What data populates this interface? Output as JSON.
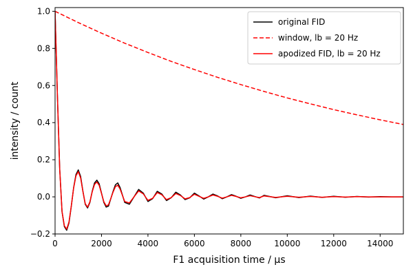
{
  "chart_data": {
    "type": "line",
    "xlabel": "F1 acquisition time / µs",
    "ylabel": "intensity / count",
    "xlim": [
      0,
      15000
    ],
    "ylim": [
      -0.2,
      1.02
    ],
    "xticks": [
      0,
      2000,
      4000,
      6000,
      8000,
      10000,
      12000,
      14000
    ],
    "xtick_labels": [
      "0",
      "2000",
      "4000",
      "6000",
      "8000",
      "10000",
      "12000",
      "14000"
    ],
    "yticks": [
      -0.2,
      0.0,
      0.2,
      0.4,
      0.6,
      0.8,
      1.0
    ],
    "ytick_labels": [
      "−0.2",
      "0.0",
      "0.2",
      "0.4",
      "0.6",
      "0.8",
      "1.0"
    ],
    "grid": false,
    "legend_position": "top-right",
    "series": [
      {
        "name": "original FID",
        "color": "#000000",
        "style": "solid",
        "x": [
          0,
          100,
          200,
          300,
          400,
          500,
          600,
          700,
          800,
          900,
          1000,
          1100,
          1200,
          1300,
          1400,
          1500,
          1600,
          1700,
          1800,
          1900,
          2000,
          2100,
          2200,
          2300,
          2400,
          2500,
          2600,
          2700,
          2800,
          2900,
          3000,
          3200,
          3400,
          3600,
          3800,
          4000,
          4200,
          4400,
          4600,
          4800,
          5000,
          5200,
          5400,
          5600,
          5800,
          6000,
          6200,
          6400,
          6600,
          6800,
          7000,
          7200,
          7400,
          7600,
          7800,
          8000,
          8200,
          8400,
          8600,
          8800,
          9000,
          9500,
          10000,
          10500,
          11000,
          11500,
          12000,
          12500,
          13000,
          13500,
          14000,
          14500,
          15000
        ],
        "y": [
          1.0,
          0.55,
          0.15,
          -0.08,
          -0.16,
          -0.18,
          -0.14,
          -0.05,
          0.05,
          0.12,
          0.145,
          0.11,
          0.03,
          -0.04,
          -0.06,
          -0.03,
          0.03,
          0.075,
          0.09,
          0.07,
          0.02,
          -0.03,
          -0.055,
          -0.05,
          -0.01,
          0.03,
          0.065,
          0.075,
          0.05,
          0.01,
          -0.03,
          -0.04,
          0.0,
          0.04,
          0.02,
          -0.025,
          -0.01,
          0.03,
          0.015,
          -0.02,
          -0.005,
          0.025,
          0.01,
          -0.015,
          -0.005,
          0.02,
          0.005,
          -0.012,
          0.0,
          0.015,
          0.005,
          -0.01,
          0.0,
          0.012,
          0.003,
          -0.008,
          0.0,
          0.01,
          0.002,
          -0.006,
          0.008,
          -0.005,
          0.006,
          -0.004,
          0.004,
          -0.003,
          0.003,
          -0.002,
          0.002,
          -0.001,
          0.001,
          0.0,
          0.0
        ]
      },
      {
        "name": "window, lb = 20 Hz",
        "color": "#ff0000",
        "style": "dashed",
        "x": [
          0,
          1000,
          2000,
          3000,
          4000,
          5000,
          6000,
          7000,
          8000,
          9000,
          10000,
          11000,
          12000,
          13000,
          14000,
          15000
        ],
        "y": [
          1.0,
          0.939,
          0.882,
          0.828,
          0.778,
          0.73,
          0.686,
          0.644,
          0.605,
          0.568,
          0.533,
          0.501,
          0.47,
          0.442,
          0.415,
          0.39
        ]
      },
      {
        "name": "apodized FID, lb = 20 Hz",
        "color": "#ff0000",
        "style": "solid",
        "x": [
          0,
          100,
          200,
          300,
          400,
          500,
          600,
          700,
          800,
          900,
          1000,
          1100,
          1200,
          1300,
          1400,
          1500,
          1600,
          1700,
          1800,
          1900,
          2000,
          2100,
          2200,
          2300,
          2400,
          2500,
          2600,
          2700,
          2800,
          2900,
          3000,
          3200,
          3400,
          3600,
          3800,
          4000,
          4200,
          4400,
          4600,
          4800,
          5000,
          5200,
          5400,
          5600,
          5800,
          6000,
          6200,
          6400,
          6600,
          6800,
          7000,
          7200,
          7400,
          7600,
          7800,
          8000,
          8200,
          8400,
          8600,
          8800,
          9000,
          9500,
          10000,
          10500,
          11000,
          11500,
          12000,
          12500,
          13000,
          13500,
          14000,
          14500,
          15000
        ],
        "y": [
          1.0,
          0.547,
          0.148,
          -0.079,
          -0.156,
          -0.174,
          -0.135,
          -0.048,
          0.048,
          0.113,
          0.136,
          0.102,
          0.028,
          -0.037,
          -0.055,
          -0.027,
          0.027,
          0.067,
          0.08,
          0.062,
          0.018,
          -0.026,
          -0.048,
          -0.043,
          -0.009,
          0.026,
          0.055,
          0.063,
          0.042,
          0.008,
          -0.025,
          -0.033,
          0.0,
          0.032,
          0.016,
          -0.019,
          -0.008,
          0.023,
          0.011,
          -0.015,
          -0.004,
          0.018,
          0.007,
          -0.011,
          -0.004,
          0.014,
          0.003,
          -0.008,
          0.0,
          0.01,
          0.003,
          -0.007,
          0.0,
          0.008,
          0.002,
          -0.005,
          0.0,
          0.006,
          0.001,
          -0.004,
          0.005,
          -0.003,
          0.003,
          -0.002,
          0.002,
          -0.002,
          0.001,
          -0.001,
          0.001,
          0.0,
          0.0,
          0.0,
          0.0
        ]
      }
    ]
  }
}
